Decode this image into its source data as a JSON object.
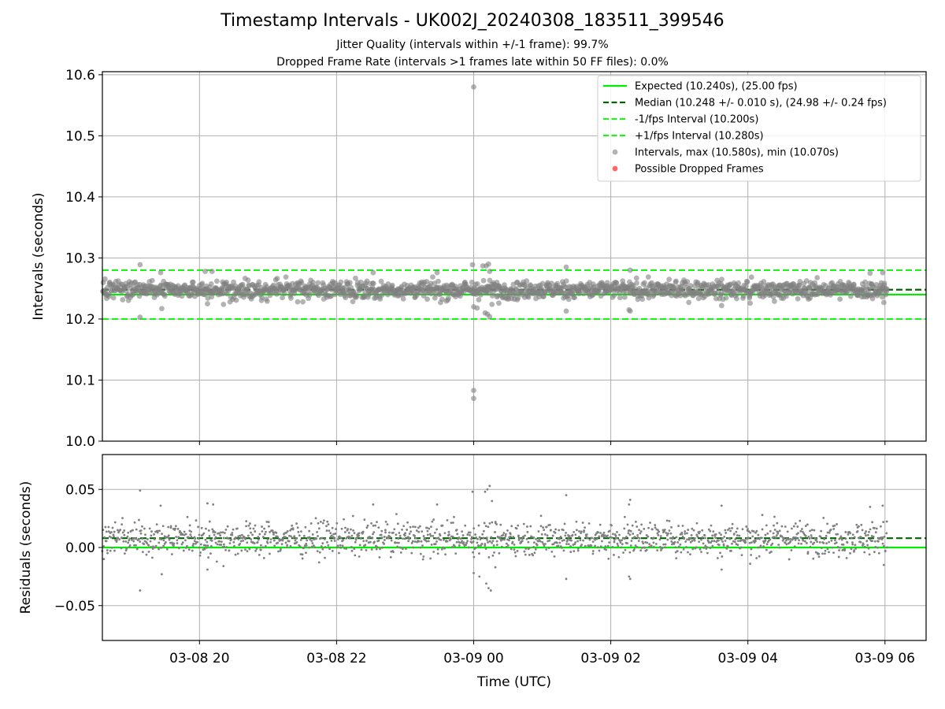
{
  "figure": {
    "title": "Timestamp Intervals - UK002J_20240308_183511_399546",
    "subtitle_1": "Jitter Quality (intervals within +/-1 frame): 99.7%",
    "subtitle_2": "Dropped Frame Rate (intervals >1 frames late within 50 FF files): 0.0%",
    "xlabel": "Time (UTC)"
  },
  "colors": {
    "expected": "#00ee00",
    "median": "#006400",
    "interval_bounds": "#22ee22",
    "points": "#808080",
    "dropped": "#ff0000",
    "grid": "#b0b0b0"
  },
  "chart_data": [
    {
      "type": "scatter",
      "name": "intervals",
      "ylabel": "Intervals (seconds)",
      "xlim": [
        "2024-03-08T18:35:00",
        "2024-03-09T06:36:00"
      ],
      "ylim": [
        10.0,
        10.605
      ],
      "yticks": [
        10.0,
        10.1,
        10.2,
        10.3,
        10.4,
        10.5,
        10.6
      ],
      "ytick_labels": [
        "10.0",
        "10.1",
        "10.2",
        "10.3",
        "10.4",
        "10.5",
        "10.6"
      ],
      "grid": true,
      "legend_position": "top-right",
      "hlines": [
        {
          "label": "Expected (10.240s), (25.00 fps)",
          "y": 10.24,
          "style": "solid",
          "color": "#00ee00"
        },
        {
          "label": "Median (10.248 +/- 0.010 s), (24.98 +/- 0.24 fps)",
          "y": 10.248,
          "style": "dashed",
          "color": "#006400"
        },
        {
          "label": "-1/fps Interval (10.200s)",
          "y": 10.2,
          "style": "dashed",
          "color": "#22ee22"
        },
        {
          "label": "+1/fps Interval (10.280s)",
          "y": 10.28,
          "style": "dashed",
          "color": "#22ee22"
        }
      ],
      "scatter_series": [
        {
          "label": "Intervals, max (10.580s), min (10.070s)",
          "color": "#808080"
        },
        {
          "label": "Possible Dropped Frames",
          "color": "#ff0000"
        }
      ],
      "time_range": [
        "2024-03-08T18:35:11",
        "2024-03-09T06:02:00"
      ],
      "typical_range": [
        10.232,
        10.264
      ],
      "notable_points": [
        {
          "x": "2024-03-08T19:08:00",
          "y": 10.289
        },
        {
          "x": "2024-03-08T19:08:00",
          "y": 10.203
        },
        {
          "x": "2024-03-08T19:26:00",
          "y": 10.276
        },
        {
          "x": "2024-03-08T19:27:00",
          "y": 10.217
        },
        {
          "x": "2024-03-08T20:05:00",
          "y": 10.278
        },
        {
          "x": "2024-03-08T20:11:00",
          "y": 10.278
        },
        {
          "x": "2024-03-08T20:07:00",
          "y": 10.225
        },
        {
          "x": "2024-03-08T20:21:00",
          "y": 10.224
        },
        {
          "x": "2024-03-08T22:32:00",
          "y": 10.276
        },
        {
          "x": "2024-03-08T23:28:00",
          "y": 10.276
        },
        {
          "x": "2024-03-08T23:31:00",
          "y": 10.227
        },
        {
          "x": "2024-03-08T23:59:00",
          "y": 10.289
        },
        {
          "x": "2024-03-09T00:00:00",
          "y": 10.58
        },
        {
          "x": "2024-03-09T00:00:00",
          "y": 10.083
        },
        {
          "x": "2024-03-09T00:00:00",
          "y": 10.07
        },
        {
          "x": "2024-03-09T00:00:00",
          "y": 10.22
        },
        {
          "x": "2024-03-09T00:03:00",
          "y": 10.218
        },
        {
          "x": "2024-03-09T00:08:00",
          "y": 10.287
        },
        {
          "x": "2024-03-09T00:11:00",
          "y": 10.287
        },
        {
          "x": "2024-03-09T00:13:00",
          "y": 10.29
        },
        {
          "x": "2024-03-09T00:14:00",
          "y": 10.278
        },
        {
          "x": "2024-03-09T00:10:00",
          "y": 10.21
        },
        {
          "x": "2024-03-09T00:12:00",
          "y": 10.208
        },
        {
          "x": "2024-03-09T00:14:00",
          "y": 10.204
        },
        {
          "x": "2024-03-09T00:16:00",
          "y": 10.224
        },
        {
          "x": "2024-03-09T00:22:00",
          "y": 10.226
        },
        {
          "x": "2024-03-09T01:21:00",
          "y": 10.285
        },
        {
          "x": "2024-03-09T01:21:00",
          "y": 10.213
        },
        {
          "x": "2024-03-09T02:17:00",
          "y": 10.28
        },
        {
          "x": "2024-03-09T02:17:00",
          "y": 10.213
        },
        {
          "x": "2024-03-09T02:16:00",
          "y": 10.215
        },
        {
          "x": "2024-03-09T03:37:00",
          "y": 10.222
        },
        {
          "x": "2024-03-09T04:02:00",
          "y": 10.226
        },
        {
          "x": "2024-03-09T05:47:00",
          "y": 10.275
        },
        {
          "x": "2024-03-09T05:58:00",
          "y": 10.276
        },
        {
          "x": "2024-03-09T05:59:00",
          "y": 10.227
        }
      ]
    },
    {
      "type": "scatter",
      "name": "residuals",
      "ylabel": "Residuals (seconds)",
      "xlabel": "Time (UTC)",
      "xlim": [
        "2024-03-08T18:35:00",
        "2024-03-09T06:36:00"
      ],
      "ylim": [
        -0.08,
        0.08
      ],
      "yticks": [
        -0.05,
        0.0,
        0.05
      ],
      "ytick_labels": [
        "−0.05",
        "0.00",
        "0.05"
      ],
      "xticks": [
        "2024-03-08T20:00:00",
        "2024-03-08T22:00:00",
        "2024-03-09T00:00:00",
        "2024-03-09T02:00:00",
        "2024-03-09T04:00:00",
        "2024-03-09T06:00:00"
      ],
      "xtick_labels": [
        "03-08 20",
        "03-08 22",
        "03-09 00",
        "03-09 02",
        "03-09 04",
        "03-09 06"
      ],
      "grid": true,
      "hlines": [
        {
          "y": 0.0,
          "style": "solid",
          "color": "#00ee00"
        },
        {
          "y": 0.008,
          "style": "dashed",
          "color": "#006400"
        }
      ],
      "typical_range": [
        -0.008,
        0.024
      ],
      "notable_points": [
        {
          "x": "2024-03-08T19:08:00",
          "y": 0.049
        },
        {
          "x": "2024-03-08T19:08:00",
          "y": -0.037
        },
        {
          "x": "2024-03-08T19:26:00",
          "y": 0.036
        },
        {
          "x": "2024-03-08T19:27:00",
          "y": -0.023
        },
        {
          "x": "2024-03-08T20:07:00",
          "y": 0.038
        },
        {
          "x": "2024-03-08T20:07:00",
          "y": -0.019
        },
        {
          "x": "2024-03-08T20:12:00",
          "y": 0.037
        },
        {
          "x": "2024-03-08T20:21:00",
          "y": -0.016
        },
        {
          "x": "2024-03-08T22:32:00",
          "y": 0.037
        },
        {
          "x": "2024-03-08T23:28:00",
          "y": 0.037
        },
        {
          "x": "2024-03-08T23:59:00",
          "y": 0.048
        },
        {
          "x": "2024-03-09T00:00:00",
          "y": -0.022
        },
        {
          "x": "2024-03-09T00:05:00",
          "y": -0.025
        },
        {
          "x": "2024-03-09T00:10:00",
          "y": 0.048
        },
        {
          "x": "2024-03-09T00:12:00",
          "y": 0.05
        },
        {
          "x": "2024-03-09T00:14:00",
          "y": 0.053
        },
        {
          "x": "2024-03-09T00:11:00",
          "y": -0.031
        },
        {
          "x": "2024-03-09T00:13:00",
          "y": -0.035
        },
        {
          "x": "2024-03-09T00:15:00",
          "y": -0.037
        },
        {
          "x": "2024-03-09T00:16:00",
          "y": 0.04
        },
        {
          "x": "2024-03-09T00:19:00",
          "y": -0.017
        },
        {
          "x": "2024-03-09T01:21:00",
          "y": 0.045
        },
        {
          "x": "2024-03-09T01:21:00",
          "y": -0.027
        },
        {
          "x": "2024-03-09T02:17:00",
          "y": 0.041
        },
        {
          "x": "2024-03-09T02:16:00",
          "y": 0.037
        },
        {
          "x": "2024-03-09T02:16:00",
          "y": -0.025
        },
        {
          "x": "2024-03-09T02:17:00",
          "y": -0.027
        },
        {
          "x": "2024-03-09T03:37:00",
          "y": 0.036
        },
        {
          "x": "2024-03-09T03:37:00",
          "y": -0.019
        },
        {
          "x": "2024-03-09T04:02:00",
          "y": -0.014
        },
        {
          "x": "2024-03-09T05:47:00",
          "y": 0.035
        },
        {
          "x": "2024-03-09T05:58:00",
          "y": 0.036
        },
        {
          "x": "2024-03-09T05:59:00",
          "y": -0.015
        }
      ]
    }
  ]
}
